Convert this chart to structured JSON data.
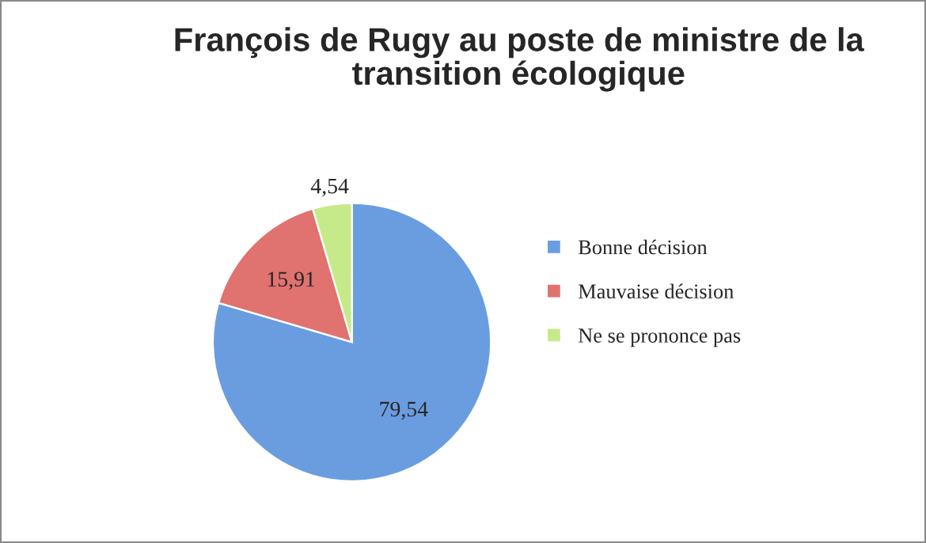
{
  "chart_data": {
    "type": "pie",
    "title": "François de Rugy au poste de ministre de la transition écologique",
    "categories": [
      "Bonne décision",
      "Mauvaise décision",
      "Ne se prononce pas"
    ],
    "values": [
      79.54,
      15.91,
      4.54
    ],
    "value_labels": [
      "79,54",
      "15,91",
      "4,54"
    ],
    "colors": [
      "#6a9de0",
      "#e0726f",
      "#c6ea8a"
    ],
    "legend": "right"
  }
}
